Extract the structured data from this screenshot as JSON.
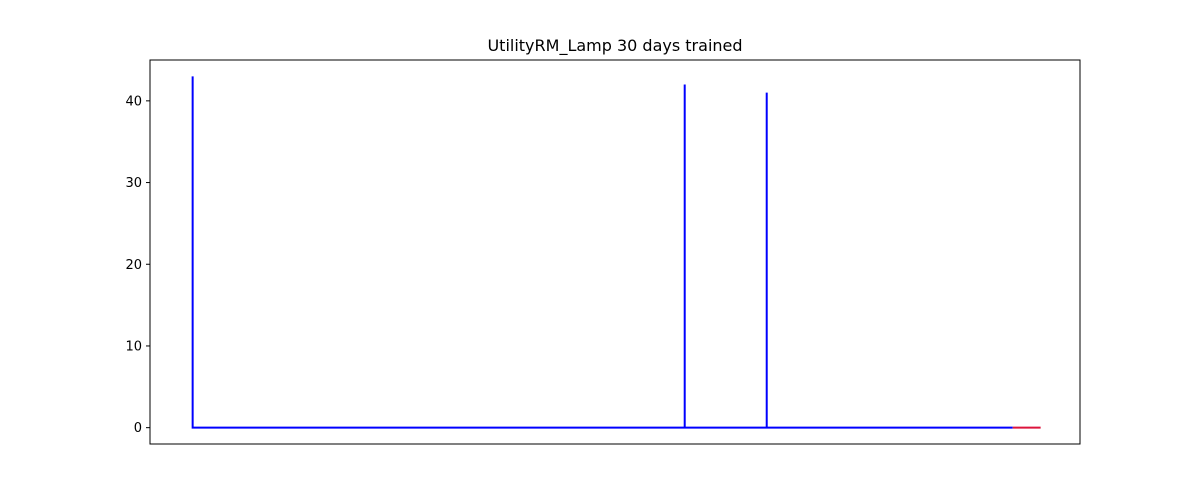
{
  "chart_data": {
    "type": "line",
    "title": "UtilityRM_Lamp 30 days trained",
    "xlabel": "",
    "ylabel": "",
    "xlim": [
      -5.2,
      108.2
    ],
    "ylim": [
      -2.0,
      45.0
    ],
    "x_ticks_visible": false,
    "y_ticks": [
      0,
      10,
      20,
      30,
      40
    ],
    "grid": false,
    "series": [
      {
        "color": "#0000ff",
        "x": [
          0,
          0,
          0,
          0,
          60,
          60,
          60,
          70,
          70,
          70,
          100
        ],
        "values": [
          0,
          43,
          0,
          0,
          0,
          42,
          0,
          0,
          41,
          0,
          0
        ]
      },
      {
        "color": "#dc143c",
        "x": [
          100,
          103.4
        ],
        "values": [
          0,
          0
        ]
      }
    ]
  }
}
